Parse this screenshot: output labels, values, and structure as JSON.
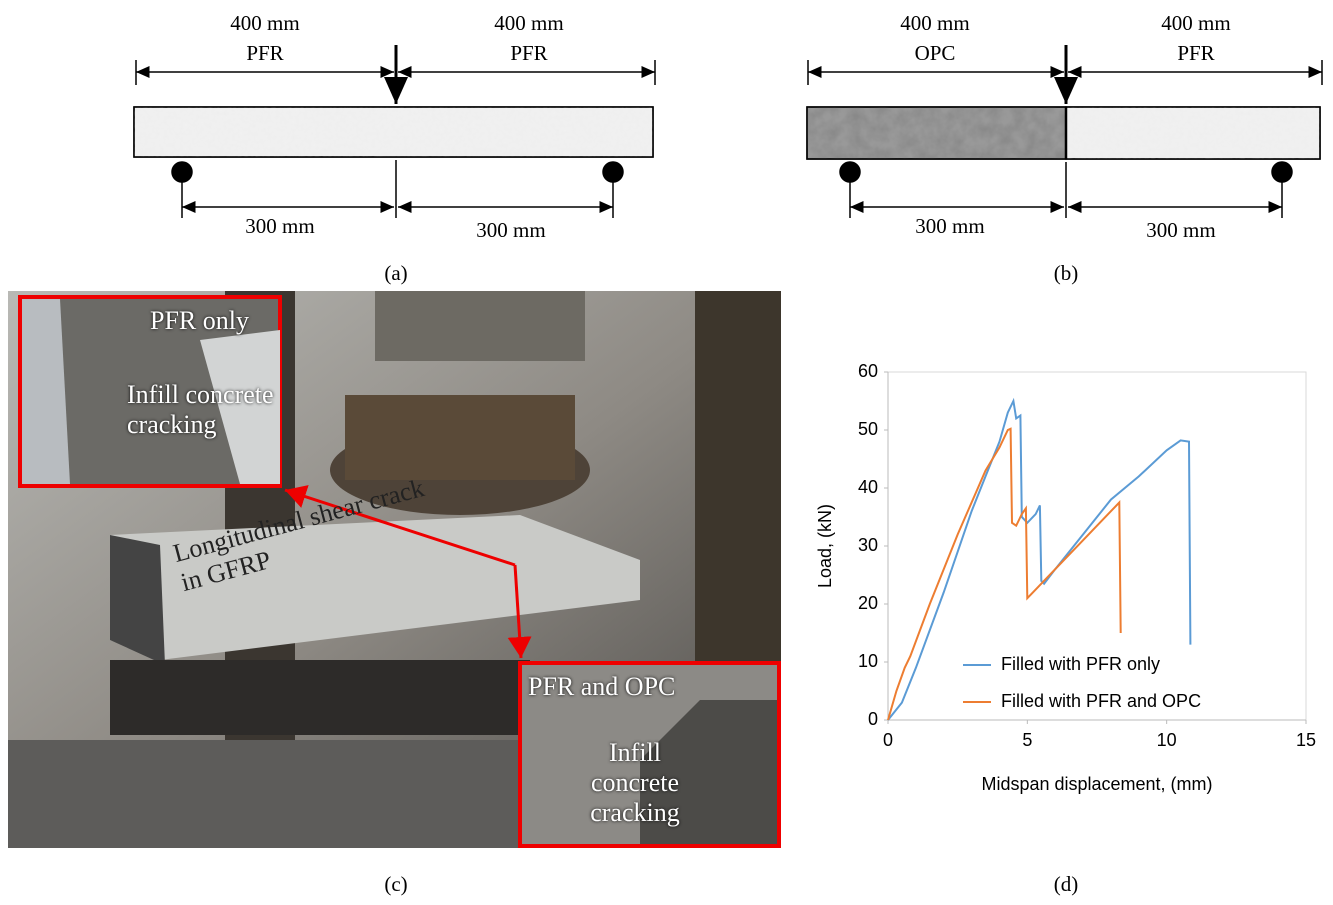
{
  "panel_a": {
    "top_left": {
      "length": "400 mm",
      "material": "PFR"
    },
    "top_right": {
      "length": "400 mm",
      "material": "PFR"
    },
    "span_left": "300 mm",
    "span_right": "300 mm",
    "caption": "(a)"
  },
  "panel_b": {
    "top_left": {
      "length": "400 mm",
      "material": "OPC"
    },
    "top_right": {
      "length": "400 mm",
      "material": "PFR"
    },
    "span_left": "300 mm",
    "span_right": "300 mm",
    "caption": "(b)"
  },
  "panel_c": {
    "inset_top": {
      "title": "PFR only",
      "note": "Infill concrete cracking"
    },
    "beam_note": "Longitudinal shear crack in GFRP",
    "inset_bottom": {
      "title": "PFR and OPC",
      "note": "Infill concrete cracking"
    },
    "caption": "(c)"
  },
  "panel_d": {
    "caption": "(d)"
  },
  "chart_data": {
    "type": "line",
    "xlabel": "Midspan displacement, (mm)",
    "ylabel": "Load, (kN)",
    "xlim": [
      0,
      15
    ],
    "ylim": [
      0,
      60
    ],
    "xticks": [
      0,
      5,
      10,
      15
    ],
    "yticks": [
      0,
      10,
      20,
      30,
      40,
      50,
      60
    ],
    "grid": false,
    "legend": "lower right",
    "series": [
      {
        "name": "Filled with PFR only",
        "color": "#5b9bd5",
        "x": [
          0,
          0.5,
          1,
          2,
          3,
          3.5,
          4,
          4.3,
          4.5,
          4.6,
          4.75,
          4.8,
          5.0,
          5.3,
          5.45,
          5.5,
          5.6,
          6,
          7,
          8,
          9,
          10,
          10.5,
          10.8,
          10.85
        ],
        "values": [
          0,
          3,
          9,
          22,
          36,
          42,
          48,
          53,
          55,
          52,
          52.5,
          35,
          34,
          35.5,
          37,
          24,
          23.5,
          26,
          32,
          38,
          42,
          46.5,
          48.2,
          48,
          13
        ]
      },
      {
        "name": "Filled with PFR and OPC",
        "color": "#ed7d31",
        "x": [
          0,
          0.3,
          0.6,
          0.8,
          1.5,
          2.5,
          3.5,
          4,
          4.3,
          4.4,
          4.45,
          4.6,
          4.8,
          4.95,
          5.0,
          5.2,
          6,
          7,
          8,
          8.3,
          8.35
        ],
        "values": [
          0,
          5,
          9,
          11,
          20,
          32,
          43,
          47,
          50,
          50.2,
          34,
          33.5,
          35.5,
          36.5,
          21,
          22,
          26,
          31,
          36,
          37.5,
          15
        ]
      }
    ]
  }
}
